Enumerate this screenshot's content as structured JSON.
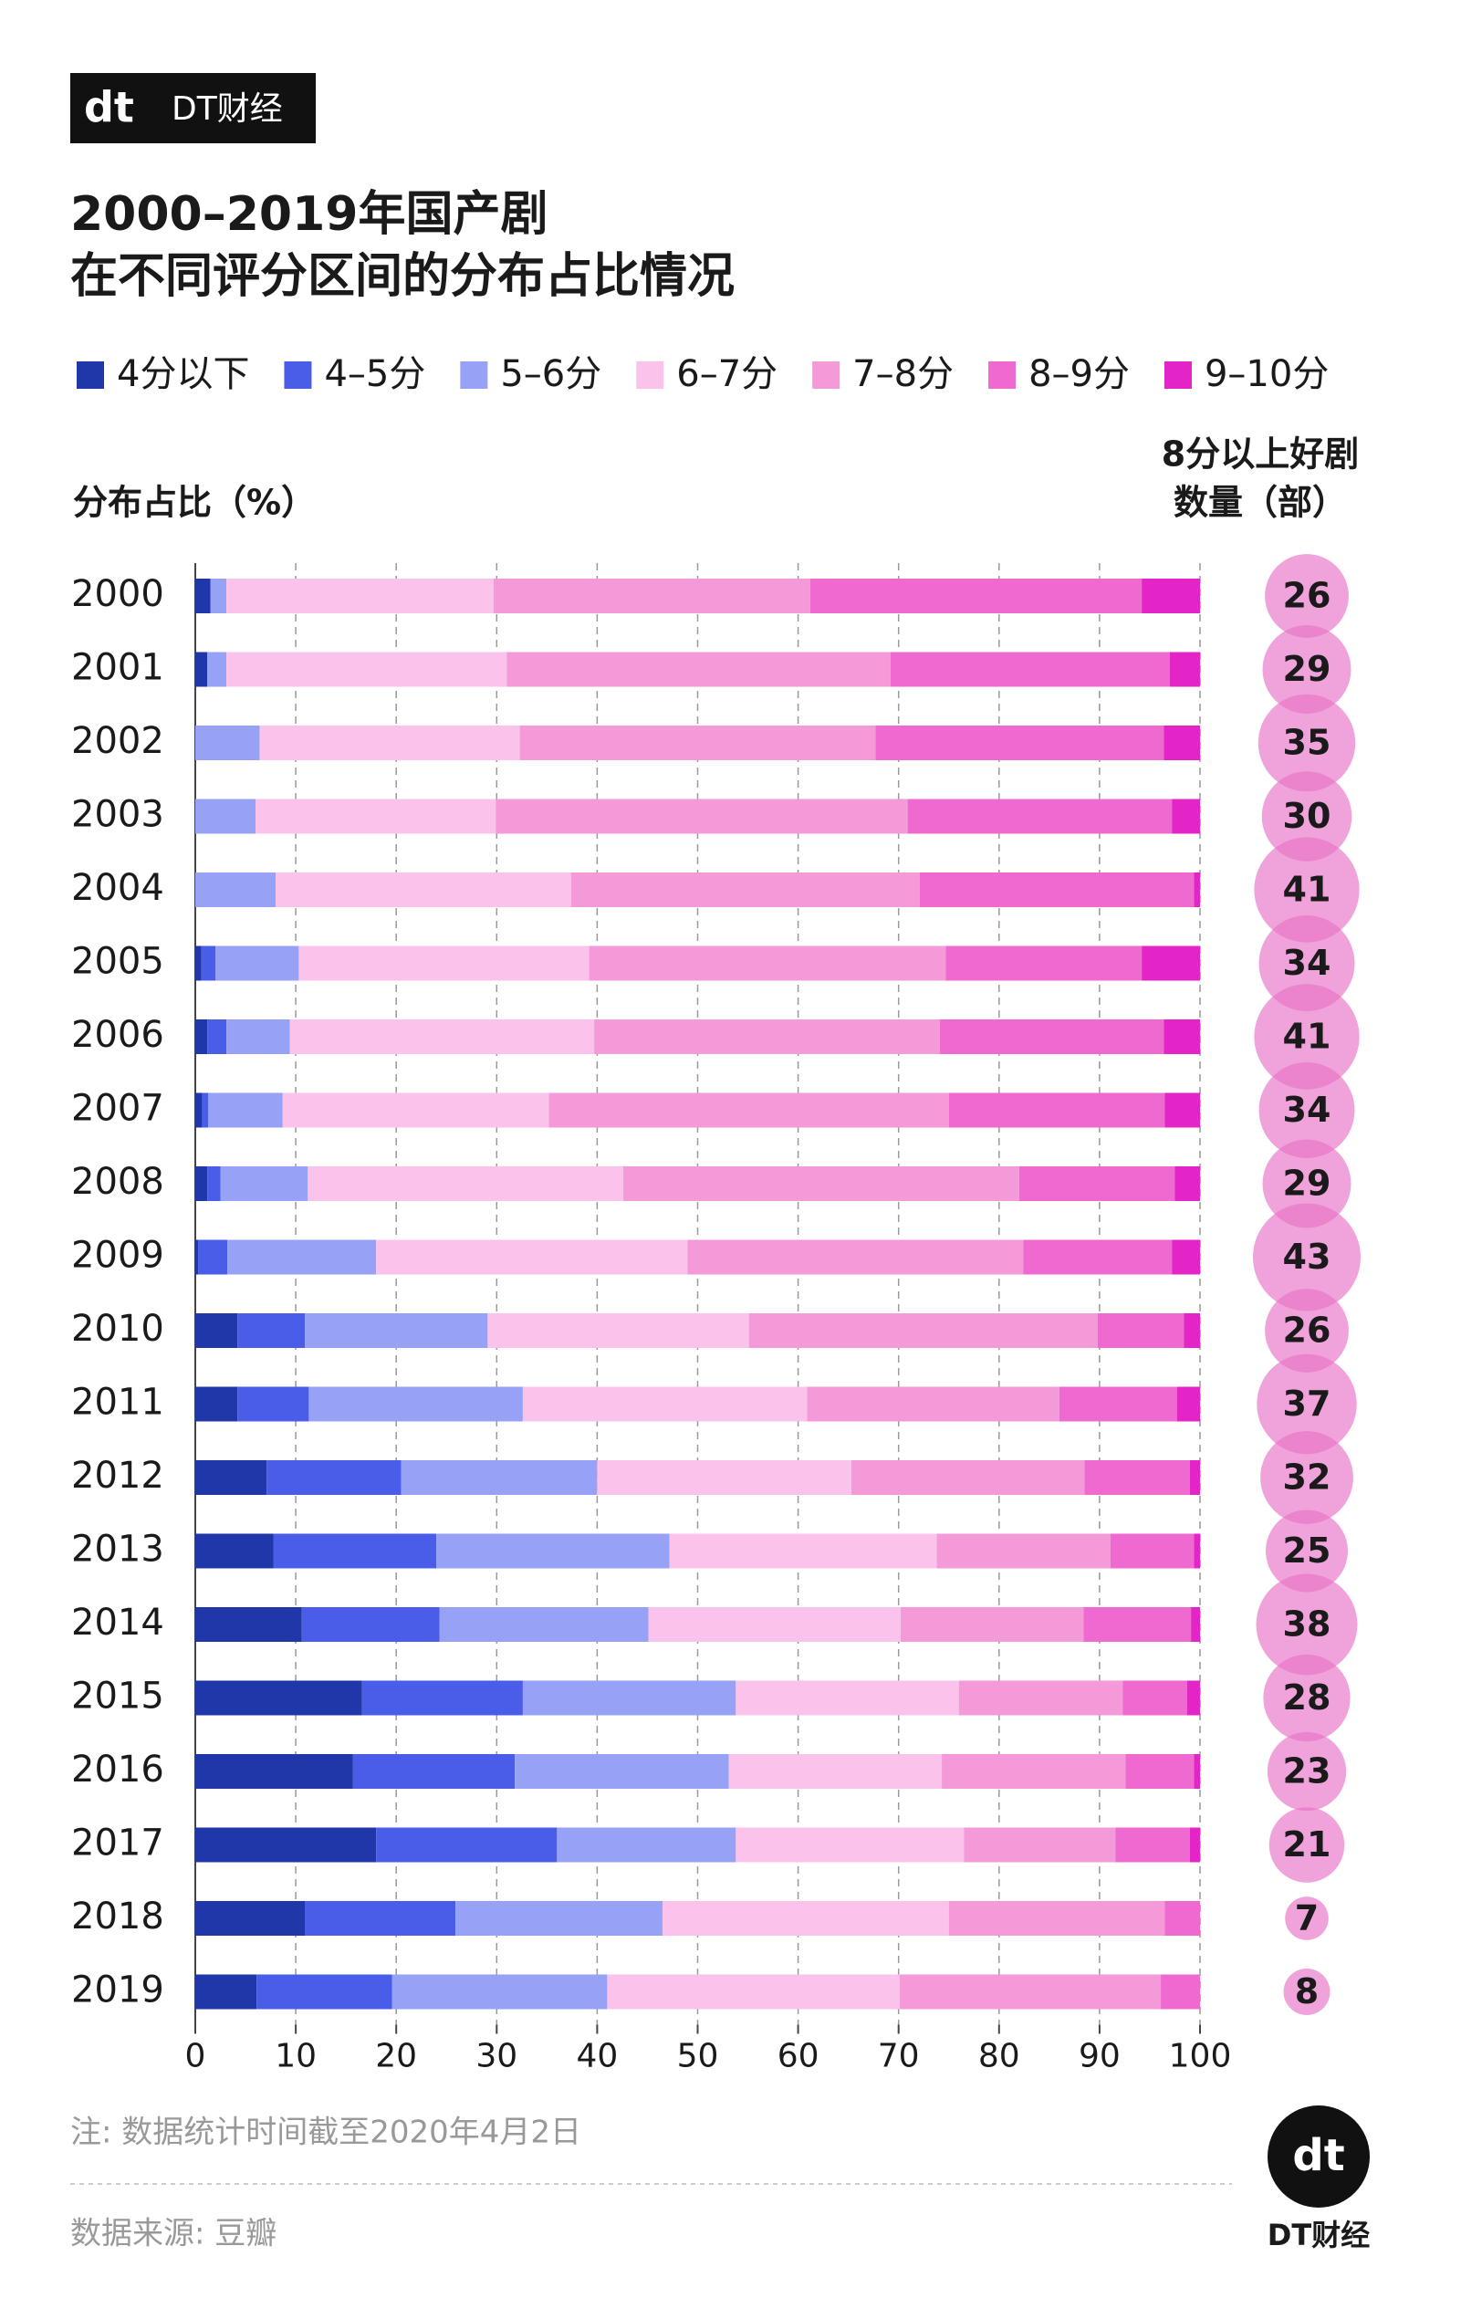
{
  "brand": {
    "mark": "dt",
    "name": "DT财经"
  },
  "chart_data": {
    "type": "bar",
    "orientation": "horizontal",
    "stacked": true,
    "title": [
      "2000–2019年国产剧",
      "在不同评分区间的分布占比情况"
    ],
    "value_axis_label": "分布占比（%）",
    "categories": [
      "2000",
      "2001",
      "2002",
      "2003",
      "2004",
      "2005",
      "2006",
      "2007",
      "2008",
      "2009",
      "2010",
      "2011",
      "2012",
      "2013",
      "2014",
      "2015",
      "2016",
      "2017",
      "2018",
      "2019"
    ],
    "series": [
      {
        "name": "4分以下",
        "color": "#1f37a8",
        "values": [
          1.5,
          1.2,
          0,
          0,
          0,
          0.6,
          1.2,
          0.7,
          1.2,
          0.3,
          4.2,
          4.2,
          7.1,
          7.8,
          10.6,
          16.6,
          15.7,
          18.0,
          10.9,
          6.1
        ]
      },
      {
        "name": "4–5分",
        "color": "#4a5de8",
        "values": [
          0,
          0,
          0,
          0,
          0,
          1.4,
          1.9,
          0.6,
          1.3,
          2.9,
          6.7,
          7.1,
          13.4,
          16.2,
          13.7,
          16.0,
          16.1,
          18.0,
          15.0,
          13.5
        ]
      },
      {
        "name": "5–6分",
        "color": "#97a1f5",
        "values": [
          1.6,
          1.9,
          6.4,
          6.0,
          8.0,
          8.3,
          6.3,
          7.4,
          8.7,
          14.8,
          18.2,
          21.3,
          19.5,
          23.2,
          20.8,
          21.2,
          21.3,
          17.8,
          20.6,
          21.4
        ]
      },
      {
        "name": "6–7分",
        "color": "#fbc3ec",
        "values": [
          26.6,
          27.9,
          25.9,
          23.9,
          29.4,
          28.9,
          30.3,
          26.5,
          31.4,
          31.0,
          26.0,
          28.3,
          25.3,
          26.6,
          25.1,
          22.2,
          21.2,
          22.7,
          28.5,
          29.1
        ]
      },
      {
        "name": "7–8分",
        "color": "#f59ad9",
        "values": [
          31.5,
          38.2,
          35.4,
          41.0,
          34.7,
          35.5,
          34.4,
          39.8,
          39.4,
          33.4,
          34.7,
          25.1,
          23.2,
          17.3,
          18.2,
          16.3,
          18.3,
          15.1,
          21.5,
          26.0
        ]
      },
      {
        "name": "8–9分",
        "color": "#ee6ad0",
        "values": [
          33.0,
          27.8,
          28.7,
          26.3,
          27.3,
          19.5,
          22.3,
          21.5,
          15.5,
          14.8,
          8.6,
          11.7,
          10.5,
          8.3,
          10.7,
          6.4,
          6.8,
          7.4,
          3.5,
          3.9
        ]
      },
      {
        "name": "9–10分",
        "color": "#e324c7",
        "values": [
          5.8,
          3.0,
          3.6,
          2.8,
          0.6,
          5.8,
          3.6,
          3.5,
          2.5,
          2.8,
          1.6,
          2.3,
          1.0,
          0.6,
          0.9,
          1.3,
          0.6,
          1.0,
          0,
          0
        ]
      }
    ],
    "xlim": [
      0,
      100
    ],
    "xticks": [
      0,
      10,
      20,
      30,
      40,
      50,
      60,
      70,
      80,
      90,
      100
    ],
    "grid": true,
    "bubbles": {
      "label": [
        "8分以上好剧",
        "数量（部）"
      ],
      "color": "#e872c6",
      "values": [
        26,
        29,
        35,
        30,
        41,
        34,
        41,
        34,
        29,
        43,
        26,
        37,
        32,
        25,
        38,
        28,
        23,
        21,
        7,
        8
      ]
    },
    "note": "注: 数据统计时间截至2020年4月2日",
    "source": "数据来源: 豆瓣"
  }
}
